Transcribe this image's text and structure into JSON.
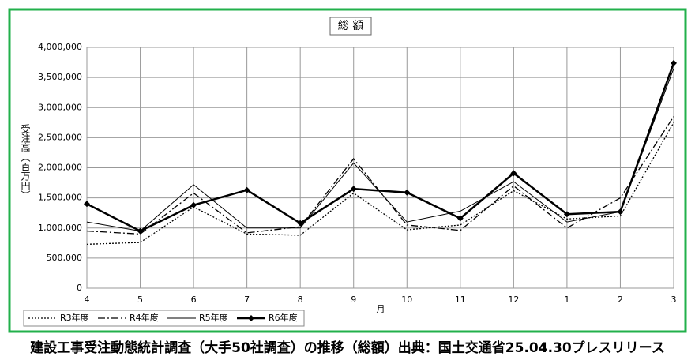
{
  "chart_data": {
    "type": "line",
    "title": "総 額",
    "categories": [
      "4",
      "5",
      "6",
      "7",
      "8",
      "9",
      "10",
      "11",
      "12",
      "1",
      "2",
      "3"
    ],
    "x_label": "月",
    "y_label": "受注高（百万円）",
    "ylim": [
      0,
      4000000
    ],
    "yticks": [
      0,
      {
        "value": 500000,
        "label": "500,000"
      },
      {
        "value": 1000000,
        "label": "1,000,000"
      },
      {
        "value": 1500000,
        "label": "1,500,000"
      },
      {
        "value": 2000000,
        "label": "2,000,000"
      },
      {
        "value": 2500000,
        "label": "2,500,000"
      },
      {
        "value": 3000000,
        "label": "3,000,000"
      },
      {
        "value": 3500000,
        "label": "3,500,000"
      },
      {
        "value": 4000000,
        "label": "4,000,000"
      }
    ],
    "grid": true,
    "legend": "bottom-left",
    "series": [
      {
        "name": "R3年度",
        "color": "#000000",
        "dash": "2,2",
        "width": 1.3,
        "marker": false,
        "values": [
          730000,
          760000,
          1350000,
          900000,
          880000,
          1580000,
          970000,
          1050000,
          1620000,
          1150000,
          1200000,
          2750000
        ]
      },
      {
        "name": "R4年度",
        "color": "#000000",
        "dash": "9,3,2,3",
        "width": 1.3,
        "marker": false,
        "values": [
          950000,
          900000,
          1580000,
          920000,
          1020000,
          2150000,
          1050000,
          960000,
          1700000,
          1000000,
          1500000,
          2850000
        ]
      },
      {
        "name": "R5年度",
        "color": "#000000",
        "dash": "none",
        "width": 1,
        "marker": false,
        "values": [
          1100000,
          950000,
          1720000,
          1000000,
          1000000,
          2080000,
          1100000,
          1280000,
          1770000,
          1100000,
          1270000,
          3650000
        ]
      },
      {
        "name": "R6年度",
        "color": "#000000",
        "dash": "none",
        "width": 2.5,
        "marker": true,
        "values": [
          1400000,
          950000,
          1380000,
          1630000,
          1080000,
          1650000,
          1590000,
          1160000,
          1910000,
          1230000,
          1270000,
          3740000
        ]
      }
    ],
    "caption": "建設工事受注動態統計調査（大手50社調査）の推移（総額）出典：国土交通省25.04.30プレスリリース"
  }
}
